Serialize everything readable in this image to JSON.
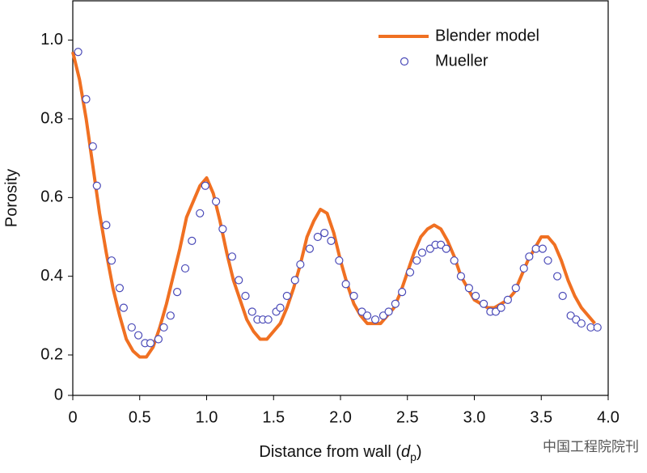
{
  "chart_data": {
    "type": "line_scatter",
    "xlabel": {
      "text": "Distance from wall (",
      "var": "d",
      "sub": "p",
      "end": ")"
    },
    "ylabel": "Porosity",
    "xlim": [
      0,
      4
    ],
    "ylim": [
      0,
      1.1
    ],
    "y_axis_break": true,
    "xticks": [
      0,
      0.5,
      {
        "value": 1,
        "label": "1.0"
      },
      1.5,
      {
        "value": 2,
        "label": "2.0"
      },
      2.5,
      {
        "value": 3,
        "label": "3.0"
      },
      3.5,
      {
        "value": 4,
        "label": "4.0"
      }
    ],
    "yticks": [
      0,
      0.2,
      0.4,
      0.6,
      0.8,
      {
        "value": 1,
        "label": "1.0"
      }
    ],
    "legend": "upper right",
    "series": [
      {
        "name": "Blender model",
        "kind": "line",
        "color": "#f07022",
        "x": [
          0,
          0.05,
          0.1,
          0.15,
          0.2,
          0.25,
          0.3,
          0.35,
          0.4,
          0.45,
          0.5,
          0.55,
          0.6,
          0.65,
          0.7,
          0.75,
          0.8,
          0.85,
          0.9,
          0.95,
          1.0,
          1.05,
          1.1,
          1.15,
          1.2,
          1.25,
          1.3,
          1.35,
          1.4,
          1.45,
          1.5,
          1.55,
          1.6,
          1.65,
          1.7,
          1.75,
          1.8,
          1.85,
          1.9,
          1.95,
          2.0,
          2.05,
          2.1,
          2.15,
          2.2,
          2.25,
          2.3,
          2.35,
          2.4,
          2.45,
          2.5,
          2.55,
          2.6,
          2.65,
          2.7,
          2.75,
          2.8,
          2.85,
          2.9,
          2.95,
          3.0,
          3.05,
          3.1,
          3.15,
          3.2,
          3.25,
          3.3,
          3.35,
          3.4,
          3.45,
          3.5,
          3.55,
          3.6,
          3.65,
          3.7,
          3.75,
          3.8,
          3.85,
          3.9
        ],
        "values": [
          0.97,
          0.9,
          0.8,
          0.68,
          0.56,
          0.46,
          0.37,
          0.3,
          0.24,
          0.21,
          0.19,
          0.19,
          0.22,
          0.27,
          0.33,
          0.4,
          0.47,
          0.55,
          0.59,
          0.63,
          0.65,
          0.61,
          0.54,
          0.46,
          0.39,
          0.34,
          0.29,
          0.26,
          0.24,
          0.24,
          0.26,
          0.28,
          0.32,
          0.37,
          0.43,
          0.5,
          0.54,
          0.57,
          0.56,
          0.51,
          0.44,
          0.38,
          0.33,
          0.3,
          0.28,
          0.28,
          0.28,
          0.3,
          0.32,
          0.36,
          0.41,
          0.46,
          0.5,
          0.52,
          0.53,
          0.52,
          0.49,
          0.45,
          0.4,
          0.37,
          0.34,
          0.33,
          0.32,
          0.32,
          0.33,
          0.34,
          0.36,
          0.4,
          0.44,
          0.47,
          0.5,
          0.5,
          0.48,
          0.44,
          0.39,
          0.35,
          0.32,
          0.3,
          0.28
        ]
      },
      {
        "name": "Mueller",
        "kind": "scatter",
        "color": "#4a4ab8",
        "x": [
          0.04,
          0.1,
          0.15,
          0.18,
          0.25,
          0.29,
          0.35,
          0.38,
          0.44,
          0.49,
          0.54,
          0.58,
          0.64,
          0.68,
          0.73,
          0.78,
          0.84,
          0.89,
          0.95,
          0.99,
          1.07,
          1.12,
          1.19,
          1.24,
          1.29,
          1.34,
          1.38,
          1.42,
          1.46,
          1.52,
          1.55,
          1.6,
          1.66,
          1.7,
          1.77,
          1.83,
          1.88,
          1.93,
          1.99,
          2.04,
          2.1,
          2.16,
          2.2,
          2.26,
          2.32,
          2.36,
          2.41,
          2.46,
          2.52,
          2.57,
          2.61,
          2.67,
          2.71,
          2.75,
          2.79,
          2.85,
          2.9,
          2.96,
          3.01,
          3.07,
          3.12,
          3.16,
          3.2,
          3.25,
          3.31,
          3.37,
          3.41,
          3.46,
          3.51,
          3.55,
          3.62,
          3.66,
          3.72,
          3.76,
          3.8,
          3.87,
          3.92
        ],
        "values": [
          0.97,
          0.85,
          0.73,
          0.63,
          0.53,
          0.44,
          0.37,
          0.32,
          0.27,
          0.25,
          0.23,
          0.23,
          0.24,
          0.27,
          0.3,
          0.36,
          0.42,
          0.49,
          0.56,
          0.63,
          0.59,
          0.52,
          0.45,
          0.39,
          0.35,
          0.31,
          0.29,
          0.29,
          0.29,
          0.31,
          0.32,
          0.35,
          0.39,
          0.43,
          0.47,
          0.5,
          0.51,
          0.49,
          0.44,
          0.38,
          0.35,
          0.31,
          0.3,
          0.29,
          0.3,
          0.31,
          0.33,
          0.36,
          0.41,
          0.44,
          0.46,
          0.47,
          0.48,
          0.48,
          0.47,
          0.44,
          0.4,
          0.37,
          0.35,
          0.33,
          0.31,
          0.31,
          0.32,
          0.34,
          0.37,
          0.42,
          0.45,
          0.47,
          0.47,
          0.44,
          0.4,
          0.35,
          0.3,
          0.29,
          0.28,
          0.27,
          0.27
        ]
      }
    ],
    "watermark": "中国工程院院刊"
  }
}
